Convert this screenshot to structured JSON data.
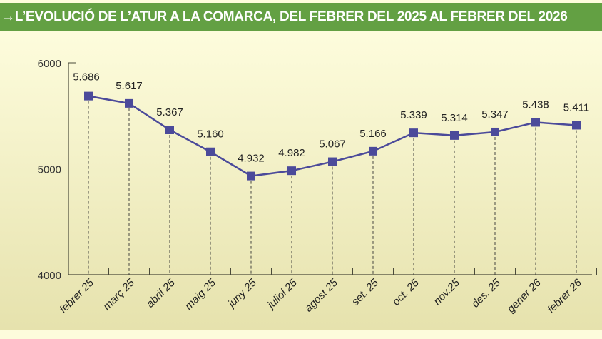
{
  "header": {
    "title": "→L’EVOLUCIÓ DE L’ATUR A LA COMARCA, DEL FEBRER DEL 2025 AL FEBRER DEL 2026"
  },
  "colors": {
    "header": "#63a043",
    "line": "#4b4a9a",
    "marker": "#4b4a9a"
  },
  "chart_data": {
    "type": "line",
    "title": "L’EVOLUCIÓ DE L’ATUR A LA COMARCA, DEL FEBRER DEL 2025 AL FEBRER DEL 2026",
    "categories": [
      "febrer 25",
      "març 25",
      "abril 25",
      "maig 25",
      "juny 25",
      "juliol 25",
      "agost 25",
      "set. 25",
      "oct. 25",
      "nov.25",
      "des. 25",
      "gener 26",
      "febrer 26"
    ],
    "values": [
      5686,
      5617,
      5367,
      5160,
      4932,
      4982,
      5067,
      5166,
      5339,
      5314,
      5347,
      5438,
      5411
    ],
    "labels": [
      "5.686",
      "5.617",
      "5.367",
      "5.160",
      "4.932",
      "4.982",
      "5.067",
      "5.166",
      "5.339",
      "5.314",
      "5.347",
      "5.438",
      "5.411"
    ],
    "yticks": [
      "4000",
      "5000",
      "6000"
    ],
    "ylim": [
      4000,
      6000
    ],
    "grid": false,
    "drop_lines": true
  }
}
